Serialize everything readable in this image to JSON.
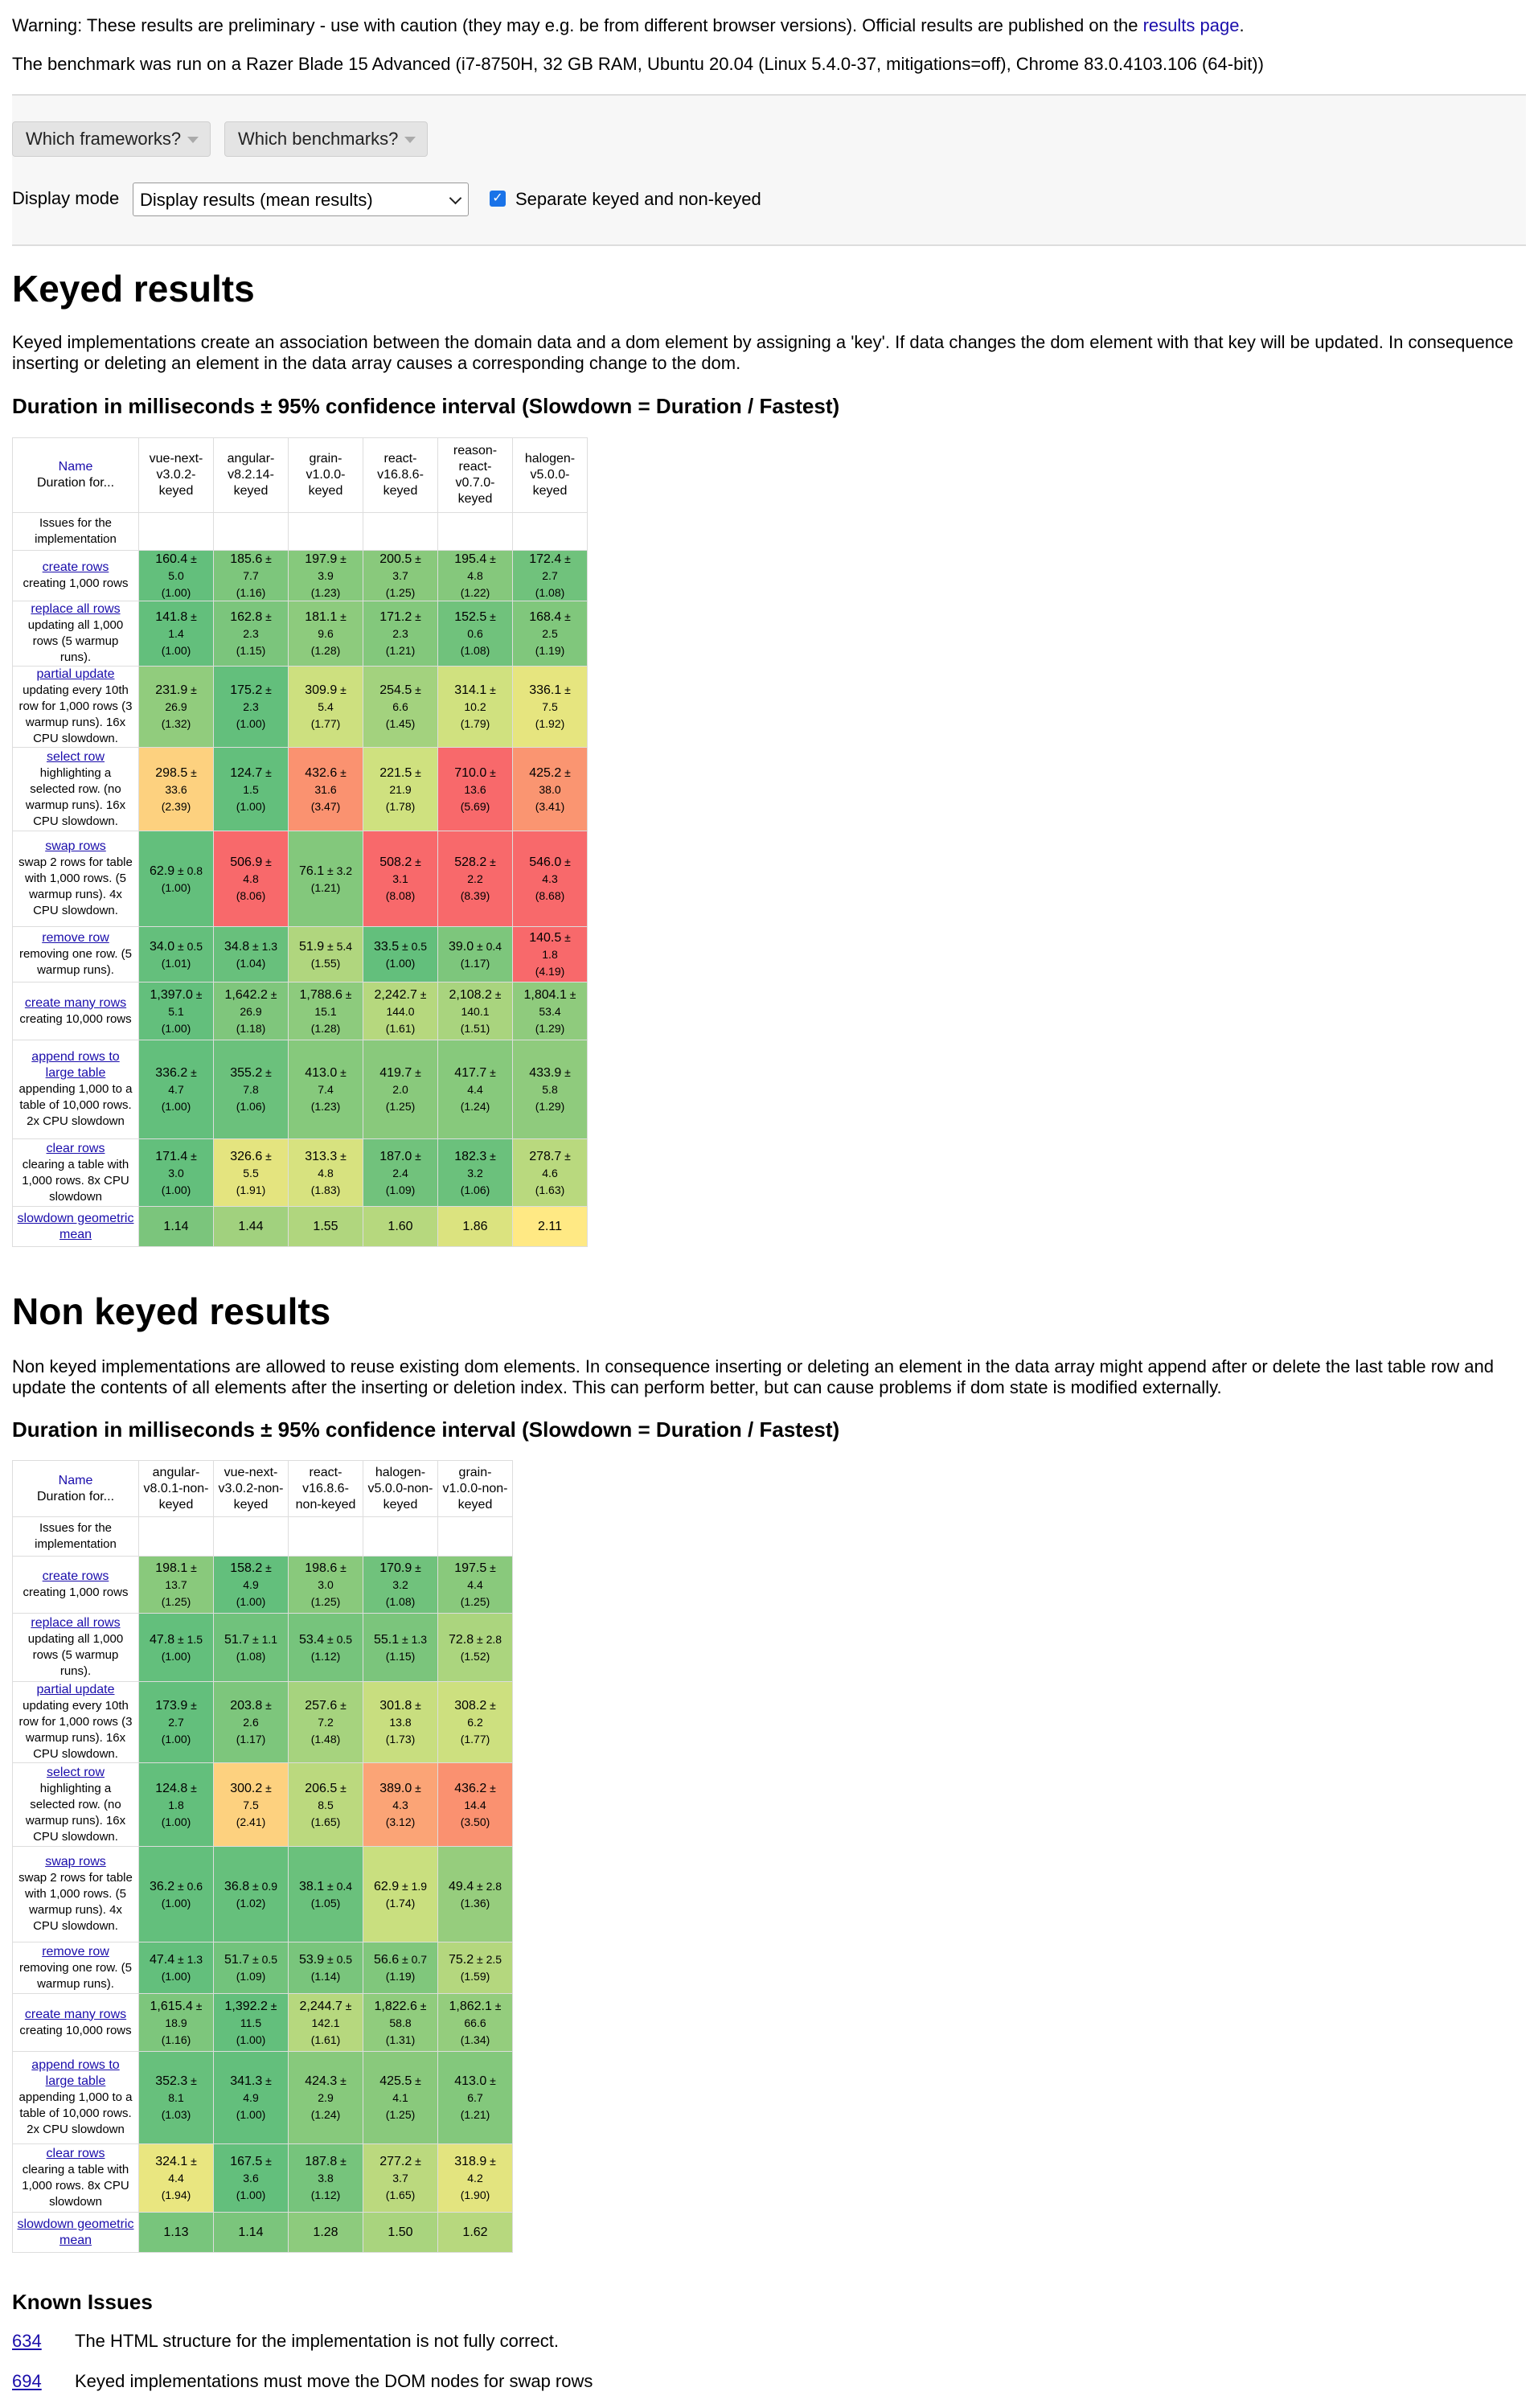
{
  "warning": {
    "text": "Warning: These results are preliminary - use with caution (they may e.g. be from different browser versions). Official results are published on the ",
    "link": "results page",
    "end": "."
  },
  "benchmark_info": "The benchmark was run on a Razer Blade 15 Advanced (i7-8750H, 32 GB RAM, Ubuntu 20.04 (Linux 5.4.0-37, mitigations=off), Chrome 83.0.4103.106 (64-bit))",
  "controls": {
    "frameworks_button": "Which frameworks?",
    "benchmarks_button": "Which benchmarks?",
    "display_mode_label": "Display mode",
    "display_mode_value": "Display results (mean results)",
    "separate_checkbox_label": "Separate keyed and non-keyed",
    "separate_checked": true
  },
  "keyed": {
    "title": "Keyed results",
    "description": "Keyed implementations create an association between the domain data and a dom element by assigning a 'key'. If data changes the dom element with that key will be updated. In consequence inserting or deleting an element in the data array causes a corresponding change to the dom.",
    "table_title": "Duration in milliseconds ± 95% confidence interval (Slowdown = Duration / Fastest)",
    "name_header": {
      "link": "Name",
      "sub": "Duration for..."
    },
    "issues_label": "Issues for the implementation",
    "frameworks": [
      "vue-next-v3.0.2-keyed",
      "angular-v8.2.14-keyed",
      "grain-v1.0.0-keyed",
      "react-v16.8.6-keyed",
      "reason-react-v0.7.0-keyed",
      "halogen-v5.0.0-keyed"
    ],
    "rows": [
      {
        "name": "create rows",
        "desc": "creating 1,000 rows",
        "cells": [
          {
            "v": "160.4",
            "ci": "5.0",
            "f": "(1.00)",
            "c": "#63bf7c"
          },
          {
            "v": "185.6",
            "ci": "7.7",
            "f": "(1.16)",
            "c": "#7dc67c"
          },
          {
            "v": "197.9",
            "ci": "3.9",
            "f": "(1.23)",
            "c": "#86c97c"
          },
          {
            "v": "200.5",
            "ci": "3.7",
            "f": "(1.25)",
            "c": "#89c97c"
          },
          {
            "v": "195.4",
            "ci": "4.8",
            "f": "(1.22)",
            "c": "#85c87c"
          },
          {
            "v": "172.4",
            "ci": "2.7",
            "f": "(1.08)",
            "c": "#70c27c"
          }
        ]
      },
      {
        "name": "replace all rows",
        "desc": "updating all 1,000 rows (5 warmup runs).",
        "cells": [
          {
            "v": "141.8",
            "ci": "1.4",
            "f": "(1.00)",
            "c": "#63bf7c"
          },
          {
            "v": "162.8",
            "ci": "2.3",
            "f": "(1.15)",
            "c": "#7bc57c"
          },
          {
            "v": "181.1",
            "ci": "9.6",
            "f": "(1.28)",
            "c": "#8dcb7d"
          },
          {
            "v": "171.2",
            "ci": "2.3",
            "f": "(1.21)",
            "c": "#83c87c"
          },
          {
            "v": "152.5",
            "ci": "0.6",
            "f": "(1.08)",
            "c": "#70c27c"
          },
          {
            "v": "168.4",
            "ci": "2.5",
            "f": "(1.19)",
            "c": "#80c77c"
          }
        ]
      },
      {
        "name": "partial update",
        "desc": "updating every 10th row for 1,000 rows (3 warmup runs). 16x CPU slowdown.",
        "cells": [
          {
            "v": "231.9",
            "ci": "26.9",
            "f": "(1.32)",
            "c": "#91cc7d"
          },
          {
            "v": "175.2",
            "ci": "2.3",
            "f": "(1.00)",
            "c": "#63bf7c"
          },
          {
            "v": "309.9",
            "ci": "5.4",
            "f": "(1.77)",
            "c": "#cde07f"
          },
          {
            "v": "254.5",
            "ci": "6.6",
            "f": "(1.45)",
            "c": "#a3d27e"
          },
          {
            "v": "314.1",
            "ci": "10.2",
            "f": "(1.79)",
            "c": "#d0e17f"
          },
          {
            "v": "336.1",
            "ci": "7.5",
            "f": "(1.92)",
            "c": "#e6e57f"
          }
        ]
      },
      {
        "name": "select row",
        "desc": "highlighting a selected row. (no warmup runs). 16x CPU slowdown.",
        "cells": [
          {
            "v": "298.5",
            "ci": "33.6",
            "f": "(2.39)",
            "c": "#fdd17f"
          },
          {
            "v": "124.7",
            "ci": "1.5",
            "f": "(1.00)",
            "c": "#63bf7c"
          },
          {
            "v": "432.6",
            "ci": "31.6",
            "f": "(3.47)",
            "c": "#fa9270"
          },
          {
            "v": "221.5",
            "ci": "21.9",
            "f": "(1.78)",
            "c": "#cfe17f"
          },
          {
            "v": "710.0",
            "ci": "13.6",
            "f": "(5.69)",
            "c": "#f8696b"
          },
          {
            "v": "425.2",
            "ci": "38.0",
            "f": "(3.41)",
            "c": "#fa9571"
          }
        ]
      },
      {
        "name": "swap rows",
        "desc": "swap 2 rows for table with 1,000 rows. (5 warmup runs). 4x CPU slowdown.",
        "cells": [
          {
            "v": "62.9",
            "ci": "0.8",
            "f": "(1.00)",
            "c": "#63bf7c",
            "inline": true
          },
          {
            "v": "506.9",
            "ci": "4.8",
            "f": "(8.06)",
            "c": "#f8696b"
          },
          {
            "v": "76.1",
            "ci": "3.2",
            "f": "(1.21)",
            "c": "#83c87c",
            "inline": true
          },
          {
            "v": "508.2",
            "ci": "3.1",
            "f": "(8.08)",
            "c": "#f8696b"
          },
          {
            "v": "528.2",
            "ci": "2.2",
            "f": "(8.39)",
            "c": "#f8696b"
          },
          {
            "v": "546.0",
            "ci": "4.3",
            "f": "(8.68)",
            "c": "#f8696b"
          }
        ]
      },
      {
        "name": "remove row",
        "desc": "removing one row. (5 warmup runs).",
        "cells": [
          {
            "v": "34.0",
            "ci": "0.5",
            "f": "(1.01)",
            "c": "#64bf7c",
            "inline": true
          },
          {
            "v": "34.8",
            "ci": "1.3",
            "f": "(1.04)",
            "c": "#68c07c",
            "inline": true
          },
          {
            "v": "51.9",
            "ci": "5.4",
            "f": "(1.55)",
            "c": "#b0d67e",
            "inline": true
          },
          {
            "v": "33.5",
            "ci": "0.5",
            "f": "(1.00)",
            "c": "#63bf7c",
            "inline": true
          },
          {
            "v": "39.0",
            "ci": "0.4",
            "f": "(1.17)",
            "c": "#7dc67c",
            "inline": true
          },
          {
            "v": "140.5",
            "ci": "1.8",
            "f": "(4.19)",
            "c": "#f8696b"
          }
        ]
      },
      {
        "name": "create many rows",
        "desc": "creating 10,000 rows",
        "cells": [
          {
            "v": "1,397.0",
            "ci": "5.1",
            "f": "(1.00)",
            "c": "#63bf7c"
          },
          {
            "v": "1,642.2",
            "ci": "26.9",
            "f": "(1.18)",
            "c": "#7fc67c"
          },
          {
            "v": "1,788.6",
            "ci": "15.1",
            "f": "(1.28)",
            "c": "#8dcb7d"
          },
          {
            "v": "2,242.7",
            "ci": "144.0",
            "f": "(1.61)",
            "c": "#b6d87e"
          },
          {
            "v": "2,108.2",
            "ci": "140.1",
            "f": "(1.51)",
            "c": "#a9d47e"
          },
          {
            "v": "1,804.1",
            "ci": "53.4",
            "f": "(1.29)",
            "c": "#8fcb7d"
          }
        ]
      },
      {
        "name": "append rows to large table",
        "desc": "appending 1,000 to a table of 10,000 rows. 2x CPU slowdown",
        "cells": [
          {
            "v": "336.2",
            "ci": "4.7",
            "f": "(1.00)",
            "c": "#63bf7c"
          },
          {
            "v": "355.2",
            "ci": "7.8",
            "f": "(1.06)",
            "c": "#6bc17c"
          },
          {
            "v": "413.0",
            "ci": "7.4",
            "f": "(1.23)",
            "c": "#86c97c"
          },
          {
            "v": "419.7",
            "ci": "2.0",
            "f": "(1.25)",
            "c": "#89c97c"
          },
          {
            "v": "417.7",
            "ci": "4.4",
            "f": "(1.24)",
            "c": "#87c97c"
          },
          {
            "v": "433.9",
            "ci": "5.8",
            "f": "(1.29)",
            "c": "#8fcb7d"
          }
        ]
      },
      {
        "name": "clear rows",
        "desc": "clearing a table with 1,000 rows. 8x CPU slowdown",
        "cells": [
          {
            "v": "171.4",
            "ci": "3.0",
            "f": "(1.00)",
            "c": "#63bf7c"
          },
          {
            "v": "326.6",
            "ci": "5.5",
            "f": "(1.91)",
            "c": "#e4e47f"
          },
          {
            "v": "313.3",
            "ci": "4.8",
            "f": "(1.83)",
            "c": "#d7e27f"
          },
          {
            "v": "187.0",
            "ci": "2.4",
            "f": "(1.09)",
            "c": "#71c27c"
          },
          {
            "v": "182.3",
            "ci": "3.2",
            "f": "(1.06)",
            "c": "#6bc17c"
          },
          {
            "v": "278.7",
            "ci": "4.6",
            "f": "(1.63)",
            "c": "#b9d97e"
          }
        ]
      }
    ],
    "geo_label": "slowdown geometric mean",
    "geo": [
      {
        "v": "1.14",
        "c": "#7bc57c"
      },
      {
        "v": "1.44",
        "c": "#a1d17e"
      },
      {
        "v": "1.55",
        "c": "#b0d67e"
      },
      {
        "v": "1.60",
        "c": "#b6d87e"
      },
      {
        "v": "1.86",
        "c": "#dbe37f"
      },
      {
        "v": "2.11",
        "c": "#ffe984"
      }
    ]
  },
  "nonkeyed": {
    "title": "Non keyed results",
    "description": "Non keyed implementations are allowed to reuse existing dom elements. In consequence inserting or deleting an element in the data array might append after or delete the last table row and update the contents of all elements after the inserting or deletion index. This can perform better, but can cause problems if dom state is modified externally.",
    "table_title": "Duration in milliseconds ± 95% confidence interval (Slowdown = Duration / Fastest)",
    "name_header": {
      "link": "Name",
      "sub": "Duration for..."
    },
    "issues_label": "Issues for the implementation",
    "frameworks": [
      "angular-v8.0.1-non-keyed",
      "vue-next-v3.0.2-non-keyed",
      "react-v16.8.6-non-keyed",
      "halogen-v5.0.0-non-keyed",
      "grain-v1.0.0-non-keyed"
    ],
    "rows": [
      {
        "name": "create rows",
        "desc": "creating 1,000 rows",
        "cells": [
          {
            "v": "198.1",
            "ci": "13.7",
            "f": "(1.25)",
            "c": "#89c97c"
          },
          {
            "v": "158.2",
            "ci": "4.9",
            "f": "(1.00)",
            "c": "#63bf7c"
          },
          {
            "v": "198.6",
            "ci": "3.0",
            "f": "(1.25)",
            "c": "#89c97c"
          },
          {
            "v": "170.9",
            "ci": "3.2",
            "f": "(1.08)",
            "c": "#70c27c"
          },
          {
            "v": "197.5",
            "ci": "4.4",
            "f": "(1.25)",
            "c": "#89c97c"
          }
        ]
      },
      {
        "name": "replace all rows",
        "desc": "updating all 1,000 rows (5 warmup runs).",
        "cells": [
          {
            "v": "47.8",
            "ci": "1.5",
            "f": "(1.00)",
            "c": "#63bf7c",
            "inline": true
          },
          {
            "v": "51.7",
            "ci": "1.1",
            "f": "(1.08)",
            "c": "#70c27c",
            "inline": true
          },
          {
            "v": "53.4",
            "ci": "0.5",
            "f": "(1.12)",
            "c": "#76c47c",
            "inline": true
          },
          {
            "v": "55.1",
            "ci": "1.3",
            "f": "(1.15)",
            "c": "#7bc57c",
            "inline": true
          },
          {
            "v": "72.8",
            "ci": "2.8",
            "f": "(1.52)",
            "c": "#abd57e",
            "inline": true
          }
        ]
      },
      {
        "name": "partial update",
        "desc": "updating every 10th row for 1,000 rows (3 warmup runs). 16x CPU slowdown.",
        "cells": [
          {
            "v": "173.9",
            "ci": "2.7",
            "f": "(1.00)",
            "c": "#63bf7c"
          },
          {
            "v": "203.8",
            "ci": "2.6",
            "f": "(1.17)",
            "c": "#7dc67c"
          },
          {
            "v": "257.6",
            "ci": "7.2",
            "f": "(1.48)",
            "c": "#a6d37e"
          },
          {
            "v": "301.8",
            "ci": "13.8",
            "f": "(1.73)",
            "c": "#c8de7f"
          },
          {
            "v": "308.2",
            "ci": "6.2",
            "f": "(1.77)",
            "c": "#cde07f"
          }
        ]
      },
      {
        "name": "select row",
        "desc": "highlighting a selected row. (no warmup runs). 16x CPU slowdown.",
        "cells": [
          {
            "v": "124.8",
            "ci": "1.8",
            "f": "(1.00)",
            "c": "#63bf7c"
          },
          {
            "v": "300.2",
            "ci": "7.5",
            "f": "(2.41)",
            "c": "#fdd17f"
          },
          {
            "v": "206.5",
            "ci": "8.5",
            "f": "(1.65)",
            "c": "#bbd97e"
          },
          {
            "v": "389.0",
            "ci": "4.3",
            "f": "(3.12)",
            "c": "#fba476"
          },
          {
            "v": "436.2",
            "ci": "14.4",
            "f": "(3.50)",
            "c": "#fa9170"
          }
        ]
      },
      {
        "name": "swap rows",
        "desc": "swap 2 rows for table with 1,000 rows. (5 warmup runs). 4x CPU slowdown.",
        "cells": [
          {
            "v": "36.2",
            "ci": "0.6",
            "f": "(1.00)",
            "c": "#63bf7c",
            "inline": true
          },
          {
            "v": "36.8",
            "ci": "0.9",
            "f": "(1.02)",
            "c": "#66c07c",
            "inline": true
          },
          {
            "v": "38.1",
            "ci": "0.4",
            "f": "(1.05)",
            "c": "#6ac17c",
            "inline": true
          },
          {
            "v": "62.9",
            "ci": "1.9",
            "f": "(1.74)",
            "c": "#c9df7f",
            "inline": true
          },
          {
            "v": "49.4",
            "ci": "2.8",
            "f": "(1.36)",
            "c": "#96cd7d",
            "inline": true
          }
        ]
      },
      {
        "name": "remove row",
        "desc": "removing one row. (5 warmup runs).",
        "cells": [
          {
            "v": "47.4",
            "ci": "1.3",
            "f": "(1.00)",
            "c": "#63bf7c",
            "inline": true
          },
          {
            "v": "51.7",
            "ci": "0.5",
            "f": "(1.09)",
            "c": "#72c37c",
            "inline": true
          },
          {
            "v": "53.9",
            "ci": "0.5",
            "f": "(1.14)",
            "c": "#79c57c",
            "inline": true
          },
          {
            "v": "56.6",
            "ci": "0.7",
            "f": "(1.19)",
            "c": "#80c77c",
            "inline": true
          },
          {
            "v": "75.2",
            "ci": "2.5",
            "f": "(1.59)",
            "c": "#b4d77e",
            "inline": true
          }
        ]
      },
      {
        "name": "create many rows",
        "desc": "creating 10,000 rows",
        "cells": [
          {
            "v": "1,615.4",
            "ci": "18.9",
            "f": "(1.16)",
            "c": "#7dc67c"
          },
          {
            "v": "1,392.2",
            "ci": "11.5",
            "f": "(1.00)",
            "c": "#63bf7c"
          },
          {
            "v": "2,244.7",
            "ci": "142.1",
            "f": "(1.61)",
            "c": "#b6d87e"
          },
          {
            "v": "1,822.6",
            "ci": "58.8",
            "f": "(1.31)",
            "c": "#90cc7d"
          },
          {
            "v": "1,862.1",
            "ci": "66.6",
            "f": "(1.34)",
            "c": "#94cd7d"
          }
        ]
      },
      {
        "name": "append rows to large table",
        "desc": "appending 1,000 to a table of 10,000 rows. 2x CPU slowdown",
        "cells": [
          {
            "v": "352.3",
            "ci": "8.1",
            "f": "(1.03)",
            "c": "#67c07c"
          },
          {
            "v": "341.3",
            "ci": "4.9",
            "f": "(1.00)",
            "c": "#63bf7c"
          },
          {
            "v": "424.3",
            "ci": "2.9",
            "f": "(1.24)",
            "c": "#87c97c"
          },
          {
            "v": "425.5",
            "ci": "4.1",
            "f": "(1.25)",
            "c": "#89c97c"
          },
          {
            "v": "413.0",
            "ci": "6.7",
            "f": "(1.21)",
            "c": "#83c87c"
          }
        ]
      },
      {
        "name": "clear rows",
        "desc": "clearing a table with 1,000 rows. 8x CPU slowdown",
        "cells": [
          {
            "v": "324.1",
            "ci": "4.4",
            "f": "(1.94)",
            "c": "#e9e680"
          },
          {
            "v": "167.5",
            "ci": "3.6",
            "f": "(1.00)",
            "c": "#63bf7c"
          },
          {
            "v": "187.8",
            "ci": "3.8",
            "f": "(1.12)",
            "c": "#76c47c"
          },
          {
            "v": "277.2",
            "ci": "3.7",
            "f": "(1.65)",
            "c": "#bbd97e"
          },
          {
            "v": "318.9",
            "ci": "4.2",
            "f": "(1.90)",
            "c": "#e3e47f"
          }
        ]
      }
    ],
    "geo_label": "slowdown geometric mean",
    "geo": [
      {
        "v": "1.13",
        "c": "#78c57c"
      },
      {
        "v": "1.14",
        "c": "#7bc57c"
      },
      {
        "v": "1.28",
        "c": "#8dcb7d"
      },
      {
        "v": "1.50",
        "c": "#a9d47e"
      },
      {
        "v": "1.62",
        "c": "#b7d87e"
      }
    ]
  },
  "known_issues": {
    "title": "Known Issues",
    "items": [
      {
        "id": "634",
        "text": "The HTML structure for the implementation is not fully correct."
      },
      {
        "id": "694",
        "text": "Keyed implementations must move the DOM nodes for swap rows"
      }
    ]
  }
}
